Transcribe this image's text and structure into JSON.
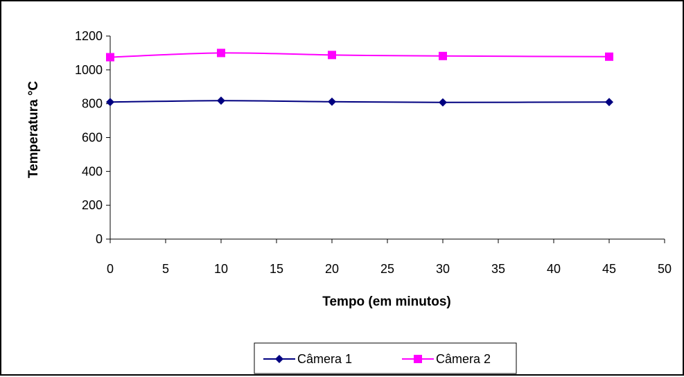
{
  "chart_data": {
    "type": "line",
    "title": "",
    "xlabel": "Tempo (em minutos)",
    "ylabel": "Temperatura °C",
    "xlim": [
      0,
      50
    ],
    "ylim": [
      0,
      1200
    ],
    "xticks": [
      "0",
      "5",
      "10",
      "15",
      "20",
      "25",
      "30",
      "35",
      "40",
      "45",
      "50"
    ],
    "yticks": [
      "0",
      "200",
      "400",
      "600",
      "800",
      "1000",
      "1200"
    ],
    "grid": false,
    "legend_position": "bottom",
    "series": [
      {
        "name": "Câmera 1",
        "color": "#000080",
        "marker": "diamond",
        "x": [
          0,
          10,
          20,
          30,
          45
        ],
        "y": [
          810,
          818,
          812,
          808,
          810
        ]
      },
      {
        "name": "Câmera 2",
        "color": "#ff00ff",
        "marker": "square",
        "x": [
          0,
          10,
          20,
          30,
          45
        ],
        "y": [
          1075,
          1100,
          1088,
          1082,
          1078
        ]
      }
    ]
  }
}
